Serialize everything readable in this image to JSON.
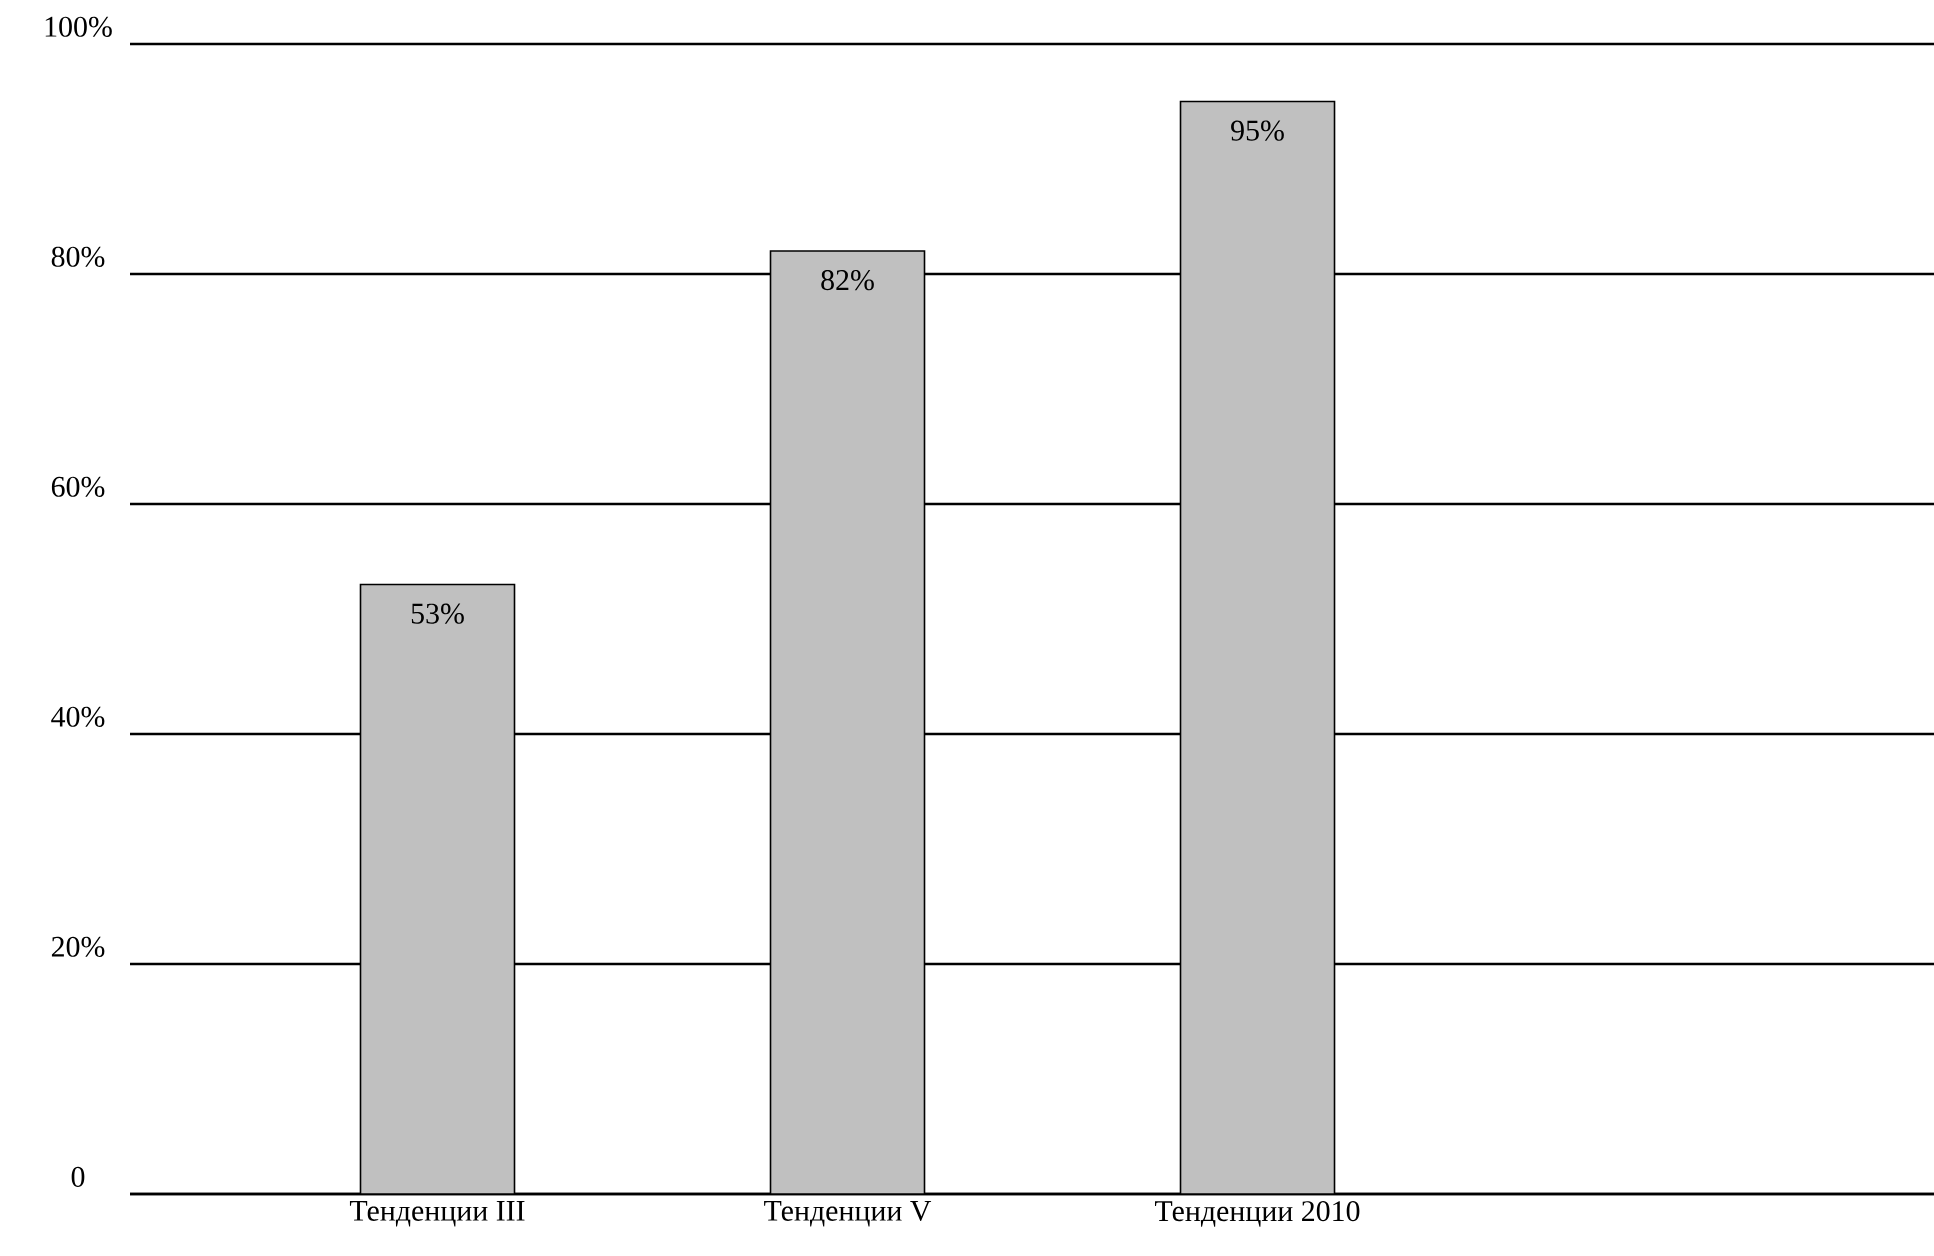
{
  "chart_data": {
    "type": "bar",
    "categories": [
      "Тенденции III",
      "Тенденции V",
      "Тенденции 2010"
    ],
    "values": [
      53,
      82,
      95
    ],
    "value_labels": [
      "53%",
      "82%",
      "95%"
    ],
    "color": "#c0c0c0",
    "ylim": [
      0,
      100
    ],
    "yticks": [
      0,
      {
        "value": 20,
        "label": "20%"
      },
      {
        "value": 40,
        "label": "40%"
      },
      {
        "value": 60,
        "label": "60%"
      },
      {
        "value": 80,
        "label": "80%"
      },
      {
        "value": 100,
        "label": "100%"
      }
    ],
    "grid": "y"
  }
}
